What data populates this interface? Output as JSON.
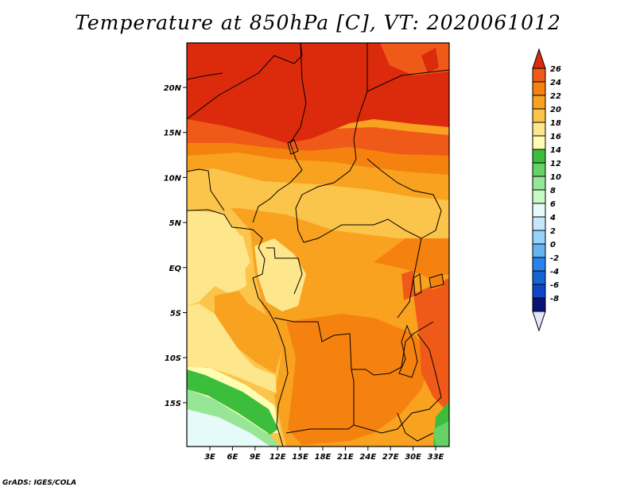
{
  "title": "Temperature at 850hPa [C], VT: 2020061012",
  "credit": "GrADS: IGES/COLA",
  "map": {
    "lat_labels": [
      "20N",
      "15N",
      "10N",
      "5N",
      "EQ",
      "5S",
      "10S",
      "15S"
    ],
    "lon_labels": [
      "3E",
      "6E",
      "9E",
      "12E",
      "15E",
      "18E",
      "21E",
      "24E",
      "27E",
      "30E",
      "33E"
    ]
  },
  "colorbar": {
    "labels": [
      "26",
      "24",
      "22",
      "20",
      "18",
      "16",
      "14",
      "12",
      "10",
      "8",
      "6",
      "4",
      "2",
      "0",
      "-2",
      "-4",
      "-6",
      "-8"
    ],
    "colors": [
      "#dc2a0c",
      "#f05a19",
      "#f5820f",
      "#f8a220",
      "#fbc44a",
      "#fee68c",
      "#fffcb4",
      "#3cbe3c",
      "#64d264",
      "#96e696",
      "#c8fac8",
      "#e6fafa",
      "#c8e6fa",
      "#96d2fa",
      "#64b4f0",
      "#2882f0",
      "#1464d2",
      "#0f46c8",
      "#0a1478",
      "#e6e6fa"
    ]
  },
  "chart_data": {
    "type": "heatmap",
    "title": "Temperature at 850hPa [C], VT: 2020061012",
    "variable": "Temperature at 850hPa",
    "units": "C",
    "valid_time": "2020061012",
    "lat_range": [
      "19S",
      "24N"
    ],
    "lon_range": [
      "0E",
      "35E"
    ],
    "colorbar_range": [
      -8,
      26
    ],
    "colorbar_step": 2
  }
}
